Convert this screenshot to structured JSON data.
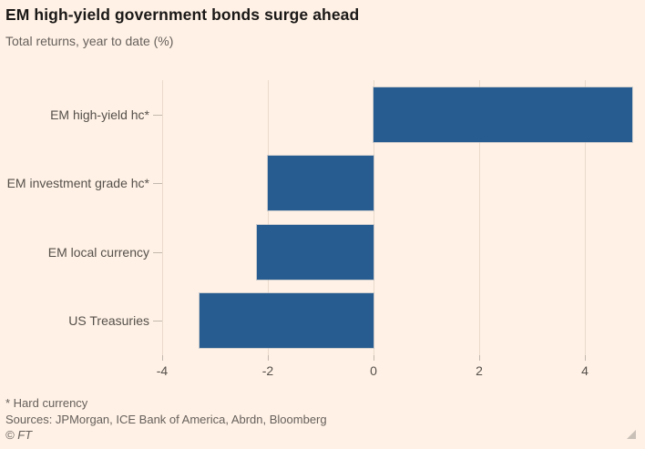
{
  "header": {
    "title": "EM high-yield government bonds surge ahead",
    "subtitle": "Total returns, year to date (%)"
  },
  "chart_data": {
    "type": "bar",
    "orientation": "horizontal",
    "title": "EM high-yield government bonds surge ahead",
    "subtitle": "Total returns, year to date (%)",
    "categories": [
      "EM high-yield hc*",
      "EM investment grade hc*",
      "EM local currency",
      "US Treasuries"
    ],
    "values": [
      4.9,
      -2.0,
      -2.2,
      -3.3
    ],
    "xlabel": "",
    "ylabel": "",
    "xlim": [
      -4,
      5
    ],
    "xticks": [
      -4,
      -2,
      0,
      2,
      4
    ],
    "grid": true,
    "legend": false
  },
  "footer": {
    "footnote": "* Hard currency",
    "sources": "Sources: JPMorgan, ICE Bank of America, Abrdn, Bloomberg",
    "copyright": "© FT"
  },
  "colors": {
    "background": "#FFF1E5",
    "bar": "#265C8F",
    "gridline": "#E9DACC",
    "tick": "#C3B8AE",
    "title_text": "#1A1817",
    "muted_text": "#66605C",
    "axis_text": "#55504B",
    "resize_handle": "#C9C0B8"
  }
}
